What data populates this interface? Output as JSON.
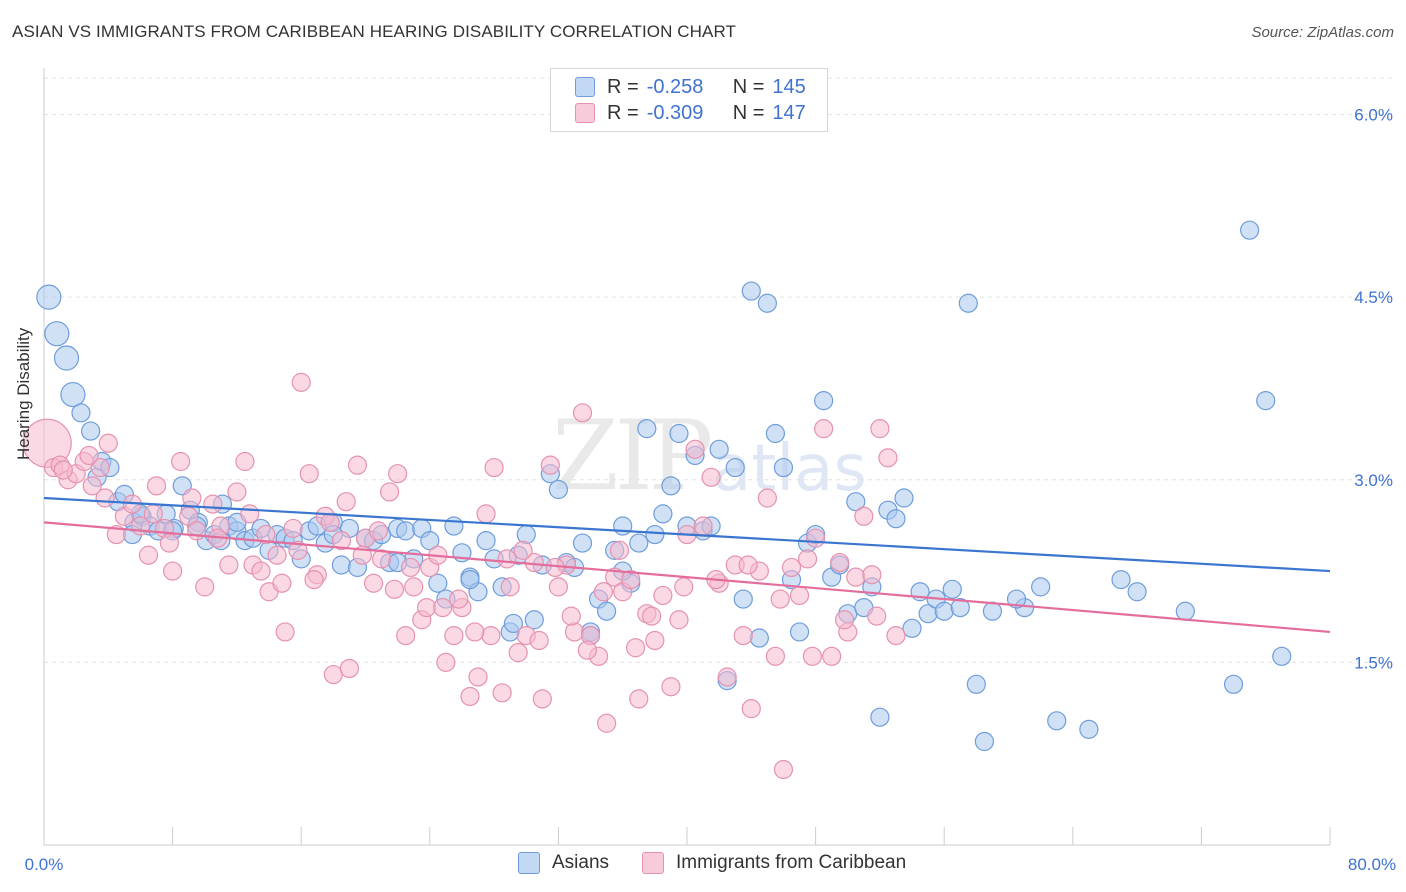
{
  "title": "ASIAN VS IMMIGRANTS FROM CARIBBEAN HEARING DISABILITY CORRELATION CHART",
  "source": "Source: ZipAtlas.com",
  "watermark": {
    "zip": "ZIP",
    "atlas": "atlas"
  },
  "legend": {
    "r_label": "R =",
    "n_label": "N =",
    "rows": [
      {
        "r": "-0.258",
        "n": "145"
      },
      {
        "r": "-0.309",
        "n": "147"
      }
    ]
  },
  "colors": {
    "blue_fill": "#aac8ee",
    "blue_stroke": "#6f9ddb",
    "blue_line": "#3a76d0",
    "pink_fill": "#f5b9cd",
    "pink_stroke": "#e592b0",
    "pink_line": "#e36e9b",
    "tick_text": "#3f72d1"
  },
  "chart_data": {
    "type": "scatter",
    "title": "ASIAN VS IMMIGRANTS FROM CARIBBEAN HEARING DISABILITY CORRELATION CHART",
    "xlabel": "",
    "ylabel": "Hearing Disability",
    "xlim": [
      0,
      80
    ],
    "ylim": [
      0,
      6.3
    ],
    "x_tick_labels": [
      "0.0%",
      "80.0%"
    ],
    "y_ticks": [
      1.5,
      3.0,
      4.5,
      6.0
    ],
    "y_tick_labels": [
      "1.5%",
      "3.0%",
      "4.5%",
      "6.0%"
    ],
    "grid": true,
    "legend_position": "top-center",
    "series": [
      {
        "name": "Asians",
        "r": -0.258,
        "n": 145,
        "trend": {
          "x": [
            0,
            80
          ],
          "y": [
            2.85,
            2.25
          ]
        },
        "points": [
          [
            0.3,
            4.5
          ],
          [
            0.8,
            4.2
          ],
          [
            1.4,
            4.0
          ],
          [
            1.8,
            3.7
          ],
          [
            2.3,
            3.55
          ],
          [
            2.9,
            3.4
          ],
          [
            3.3,
            3.02
          ],
          [
            3.6,
            3.15
          ],
          [
            4.1,
            3.1
          ],
          [
            4.6,
            2.82
          ],
          [
            5.0,
            2.88
          ],
          [
            5.6,
            2.65
          ],
          [
            6.1,
            2.7
          ],
          [
            6.6,
            2.62
          ],
          [
            7.1,
            2.58
          ],
          [
            7.6,
            2.72
          ],
          [
            8.1,
            2.6
          ],
          [
            8.6,
            2.95
          ],
          [
            9.1,
            2.75
          ],
          [
            9.6,
            2.65
          ],
          [
            10.1,
            2.5
          ],
          [
            10.6,
            2.55
          ],
          [
            11.1,
            2.8
          ],
          [
            11.5,
            2.62
          ],
          [
            12.0,
            2.58
          ],
          [
            12.5,
            2.5
          ],
          [
            13.0,
            2.52
          ],
          [
            13.5,
            2.6
          ],
          [
            14.0,
            2.42
          ],
          [
            14.5,
            2.55
          ],
          [
            15.0,
            2.52
          ],
          [
            15.5,
            2.5
          ],
          [
            16.0,
            2.35
          ],
          [
            16.5,
            2.58
          ],
          [
            17.0,
            2.62
          ],
          [
            17.5,
            2.48
          ],
          [
            18.0,
            2.65
          ],
          [
            18.5,
            2.3
          ],
          [
            19.0,
            2.6
          ],
          [
            19.5,
            2.28
          ],
          [
            20.0,
            2.52
          ],
          [
            20.5,
            2.5
          ],
          [
            21.0,
            2.55
          ],
          [
            21.5,
            2.32
          ],
          [
            22.0,
            2.6
          ],
          [
            22.5,
            2.58
          ],
          [
            23.0,
            2.35
          ],
          [
            23.5,
            2.6
          ],
          [
            24.0,
            2.5
          ],
          [
            24.5,
            2.15
          ],
          [
            25.0,
            2.02
          ],
          [
            25.5,
            2.62
          ],
          [
            26.0,
            2.4
          ],
          [
            26.5,
            2.2
          ],
          [
            27.0,
            2.08
          ],
          [
            27.5,
            2.5
          ],
          [
            28.0,
            2.35
          ],
          [
            28.5,
            2.12
          ],
          [
            29.0,
            1.75
          ],
          [
            29.5,
            2.38
          ],
          [
            30.0,
            2.55
          ],
          [
            30.5,
            1.85
          ],
          [
            31.0,
            2.3
          ],
          [
            31.5,
            3.05
          ],
          [
            32.0,
            2.92
          ],
          [
            32.5,
            2.32
          ],
          [
            33.0,
            2.28
          ],
          [
            33.5,
            2.48
          ],
          [
            34.0,
            1.75
          ],
          [
            34.5,
            2.02
          ],
          [
            35.0,
            1.92
          ],
          [
            35.5,
            2.42
          ],
          [
            36.0,
            2.62
          ],
          [
            36.5,
            2.15
          ],
          [
            37.0,
            2.48
          ],
          [
            37.5,
            3.42
          ],
          [
            38.0,
            2.55
          ],
          [
            38.5,
            2.72
          ],
          [
            39.0,
            2.95
          ],
          [
            39.5,
            3.38
          ],
          [
            40.0,
            2.62
          ],
          [
            40.5,
            3.2
          ],
          [
            41.0,
            2.58
          ],
          [
            41.5,
            2.62
          ],
          [
            42.0,
            3.25
          ],
          [
            42.5,
            1.35
          ],
          [
            43.0,
            3.1
          ],
          [
            43.5,
            2.02
          ],
          [
            44.0,
            4.55
          ],
          [
            44.5,
            1.7
          ],
          [
            45.0,
            4.45
          ],
          [
            45.5,
            3.38
          ],
          [
            46.0,
            3.1
          ],
          [
            46.5,
            2.18
          ],
          [
            47.0,
            1.75
          ],
          [
            47.5,
            2.48
          ],
          [
            48.0,
            2.55
          ],
          [
            48.5,
            3.65
          ],
          [
            49.0,
            2.2
          ],
          [
            49.5,
            2.3
          ],
          [
            50.0,
            1.9
          ],
          [
            50.5,
            2.82
          ],
          [
            51.0,
            1.95
          ],
          [
            51.5,
            2.12
          ],
          [
            52.0,
            1.05
          ],
          [
            52.5,
            2.75
          ],
          [
            53.0,
            2.68
          ],
          [
            53.5,
            2.85
          ],
          [
            54.0,
            1.78
          ],
          [
            54.5,
            2.08
          ],
          [
            55.0,
            1.9
          ],
          [
            55.5,
            2.02
          ],
          [
            56.0,
            1.92
          ],
          [
            56.5,
            2.1
          ],
          [
            57.0,
            1.95
          ],
          [
            57.5,
            4.45
          ],
          [
            58.0,
            1.32
          ],
          [
            58.5,
            0.85
          ],
          [
            59.0,
            1.92
          ],
          [
            75.0,
            5.05
          ],
          [
            76.0,
            3.65
          ],
          [
            77.0,
            1.55
          ],
          [
            74.0,
            1.32
          ],
          [
            71.0,
            1.92
          ],
          [
            68.0,
            2.08
          ],
          [
            67.0,
            2.18
          ],
          [
            65.0,
            0.95
          ],
          [
            63.0,
            1.02
          ],
          [
            62.0,
            2.12
          ],
          [
            61.0,
            1.95
          ],
          [
            60.5,
            2.02
          ],
          [
            36.0,
            2.25
          ],
          [
            34.0,
            1.72
          ],
          [
            22.0,
            2.32
          ],
          [
            18.0,
            2.55
          ],
          [
            12.0,
            2.65
          ],
          [
            8.0,
            2.58
          ],
          [
            6.0,
            2.72
          ],
          [
            5.5,
            2.55
          ],
          [
            9.5,
            2.62
          ],
          [
            11.0,
            2.5
          ],
          [
            26.5,
            2.18
          ],
          [
            29.2,
            1.82
          ]
        ]
      },
      {
        "name": "Immigrants from Caribbean",
        "r": -0.309,
        "n": 147,
        "trend": {
          "x": [
            0,
            80
          ],
          "y": [
            2.65,
            1.75
          ]
        },
        "points": [
          [
            0.2,
            3.3
          ],
          [
            0.6,
            3.1
          ],
          [
            1.0,
            3.12
          ],
          [
            1.5,
            3.0
          ],
          [
            2.0,
            3.05
          ],
          [
            2.5,
            3.15
          ],
          [
            3.0,
            2.95
          ],
          [
            3.5,
            3.1
          ],
          [
            4.0,
            3.3
          ],
          [
            4.5,
            2.55
          ],
          [
            5.0,
            2.7
          ],
          [
            5.5,
            2.8
          ],
          [
            6.0,
            2.62
          ],
          [
            6.5,
            2.38
          ],
          [
            7.0,
            2.95
          ],
          [
            7.5,
            2.6
          ],
          [
            8.0,
            2.25
          ],
          [
            8.5,
            3.15
          ],
          [
            9.0,
            2.7
          ],
          [
            9.5,
            2.58
          ],
          [
            10.0,
            2.12
          ],
          [
            10.5,
            2.8
          ],
          [
            11.0,
            2.62
          ],
          [
            11.5,
            2.3
          ],
          [
            12.0,
            2.9
          ],
          [
            12.5,
            3.15
          ],
          [
            13.0,
            2.3
          ],
          [
            13.5,
            2.25
          ],
          [
            14.0,
            2.08
          ],
          [
            14.5,
            2.38
          ],
          [
            15.0,
            1.75
          ],
          [
            15.5,
            2.6
          ],
          [
            16.0,
            3.8
          ],
          [
            16.5,
            3.05
          ],
          [
            17.0,
            2.22
          ],
          [
            17.5,
            2.7
          ],
          [
            18.0,
            1.4
          ],
          [
            18.5,
            2.5
          ],
          [
            19.0,
            1.45
          ],
          [
            19.5,
            3.12
          ],
          [
            20.0,
            2.52
          ],
          [
            20.5,
            2.15
          ],
          [
            21.0,
            2.35
          ],
          [
            21.5,
            2.9
          ],
          [
            22.0,
            3.05
          ],
          [
            22.5,
            1.72
          ],
          [
            23.0,
            2.12
          ],
          [
            23.5,
            1.85
          ],
          [
            24.0,
            2.28
          ],
          [
            24.5,
            2.38
          ],
          [
            25.0,
            1.5
          ],
          [
            25.5,
            1.72
          ],
          [
            26.0,
            1.95
          ],
          [
            26.5,
            1.22
          ],
          [
            27.0,
            1.38
          ],
          [
            27.5,
            2.72
          ],
          [
            28.0,
            3.1
          ],
          [
            28.5,
            1.25
          ],
          [
            29.0,
            2.12
          ],
          [
            29.5,
            1.58
          ],
          [
            30.0,
            1.72
          ],
          [
            30.5,
            2.32
          ],
          [
            31.0,
            1.2
          ],
          [
            31.5,
            3.12
          ],
          [
            32.0,
            2.12
          ],
          [
            32.5,
            2.3
          ],
          [
            33.0,
            1.75
          ],
          [
            33.5,
            3.55
          ],
          [
            34.0,
            1.72
          ],
          [
            34.5,
            1.55
          ],
          [
            35.0,
            1.0
          ],
          [
            35.5,
            2.2
          ],
          [
            36.0,
            2.08
          ],
          [
            36.5,
            2.18
          ],
          [
            37.0,
            1.2
          ],
          [
            37.5,
            1.9
          ],
          [
            38.0,
            1.68
          ],
          [
            38.5,
            2.05
          ],
          [
            39.0,
            1.3
          ],
          [
            39.5,
            1.85
          ],
          [
            40.0,
            2.55
          ],
          [
            40.5,
            3.25
          ],
          [
            41.0,
            2.62
          ],
          [
            41.5,
            3.02
          ],
          [
            42.0,
            2.15
          ],
          [
            42.5,
            1.38
          ],
          [
            43.0,
            2.3
          ],
          [
            43.5,
            1.72
          ],
          [
            44.0,
            1.12
          ],
          [
            44.5,
            2.25
          ],
          [
            45.0,
            2.85
          ],
          [
            45.5,
            1.55
          ],
          [
            46.0,
            0.62
          ],
          [
            46.5,
            2.28
          ],
          [
            47.0,
            2.05
          ],
          [
            47.5,
            2.35
          ],
          [
            48.0,
            2.52
          ],
          [
            48.5,
            3.42
          ],
          [
            49.0,
            1.55
          ],
          [
            49.5,
            2.32
          ],
          [
            50.0,
            1.75
          ],
          [
            50.5,
            2.2
          ],
          [
            51.0,
            2.7
          ],
          [
            51.5,
            2.22
          ],
          [
            52.0,
            3.42
          ],
          [
            52.5,
            3.18
          ],
          [
            53.0,
            1.72
          ],
          [
            2.8,
            3.2
          ],
          [
            3.8,
            2.85
          ],
          [
            7.8,
            2.48
          ],
          [
            9.2,
            2.85
          ],
          [
            13.8,
            2.55
          ],
          [
            15.8,
            2.42
          ],
          [
            17.8,
            2.65
          ],
          [
            19.8,
            2.38
          ],
          [
            21.8,
            2.1
          ],
          [
            23.8,
            1.95
          ],
          [
            25.8,
            2.02
          ],
          [
            27.8,
            1.72
          ],
          [
            29.8,
            2.42
          ],
          [
            31.8,
            2.28
          ],
          [
            33.8,
            1.6
          ],
          [
            35.8,
            2.42
          ],
          [
            37.8,
            1.88
          ],
          [
            39.8,
            2.12
          ],
          [
            41.8,
            2.18
          ],
          [
            43.8,
            2.3
          ],
          [
            45.8,
            2.02
          ],
          [
            47.8,
            1.55
          ],
          [
            49.8,
            1.85
          ],
          [
            51.8,
            1.88
          ],
          [
            1.2,
            3.08
          ],
          [
            6.8,
            2.72
          ],
          [
            10.8,
            2.52
          ],
          [
            12.8,
            2.72
          ],
          [
            14.8,
            2.15
          ],
          [
            16.8,
            2.18
          ],
          [
            18.8,
            2.82
          ],
          [
            20.8,
            2.58
          ],
          [
            22.8,
            2.28
          ],
          [
            24.8,
            1.95
          ],
          [
            26.8,
            1.75
          ],
          [
            28.8,
            2.35
          ],
          [
            30.8,
            1.68
          ],
          [
            32.8,
            1.88
          ],
          [
            34.8,
            2.08
          ],
          [
            36.8,
            1.62
          ]
        ]
      }
    ]
  },
  "bottom_legend": [
    "Asians",
    "Immigrants from Caribbean"
  ]
}
